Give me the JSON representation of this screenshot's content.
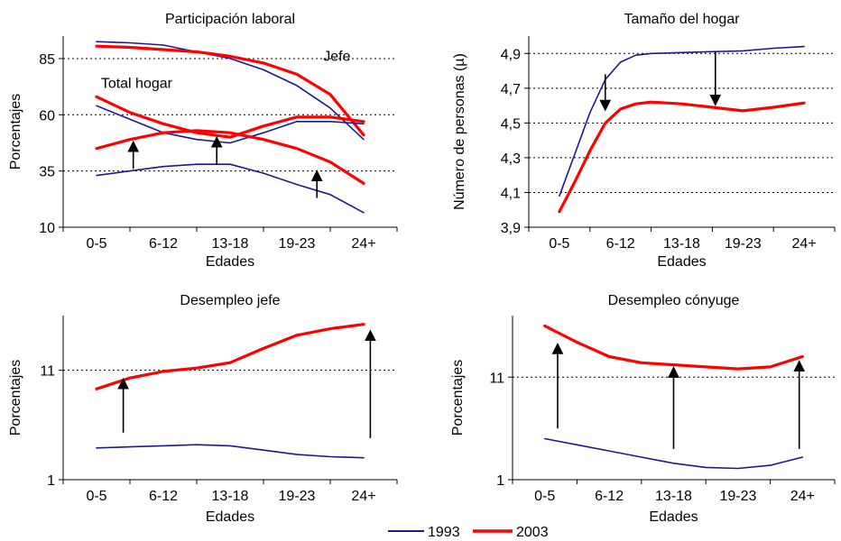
{
  "colors": {
    "s1993": "#1a1a8c",
    "s2003": "#ff0000",
    "grid": "#000000"
  },
  "legend": [
    {
      "name": "1993",
      "color": "#1a1a8c"
    },
    {
      "name": "2003",
      "color": "#ff0000"
    }
  ],
  "chart_data": [
    {
      "type": "line",
      "title": "Participación laboral",
      "xlabel": "Edades",
      "ylabel": "Porcentajes",
      "categories": [
        "0-5",
        "6-12",
        "13-18",
        "19-23",
        "24+"
      ],
      "ylim": [
        10,
        95
      ],
      "yticks": [
        10,
        35,
        60,
        85
      ],
      "gridlines": [
        35,
        60,
        85
      ],
      "annotations": [
        {
          "text": "Total hogar",
          "x": 0.6,
          "y": 72
        },
        {
          "text": "Jefe",
          "x": 3.6,
          "y": 84
        }
      ],
      "arrows": [
        {
          "x": 0.55,
          "from": 36,
          "to": 46,
          "dir": "up"
        },
        {
          "x": 1.8,
          "from": 38,
          "to": 48,
          "dir": "up"
        },
        {
          "x": 3.3,
          "from": 23,
          "to": 33,
          "dir": "up"
        }
      ],
      "series": [
        {
          "name": "1993",
          "x": [
            0,
            0.5,
            1,
            1.5,
            2,
            2.5,
            3,
            3.5,
            4
          ],
          "values": [
            92.5,
            92,
            91,
            88,
            85,
            80,
            73,
            63,
            49
          ]
        },
        {
          "name": "2003",
          "x": [
            0,
            0.5,
            1,
            1.5,
            2,
            2.5,
            3,
            3.5,
            4
          ],
          "values": [
            90.5,
            90,
            89,
            88,
            86,
            83,
            78,
            69,
            51
          ]
        },
        {
          "name": "1993",
          "x": [
            0,
            0.5,
            1,
            1.5,
            2,
            2.5,
            3,
            3.5,
            4
          ],
          "values": [
            64,
            58,
            52,
            49,
            47.5,
            52,
            57,
            57,
            56
          ]
        },
        {
          "name": "2003",
          "x": [
            0,
            0.5,
            1,
            1.5,
            2,
            2.5,
            3,
            3.5,
            4
          ],
          "values": [
            68,
            61,
            56,
            52,
            50,
            55,
            59,
            59,
            57
          ]
        },
        {
          "name": "2003",
          "x": [
            0,
            0.5,
            1,
            1.5,
            2,
            2.5,
            3,
            3.5,
            4
          ],
          "values": [
            45,
            49,
            52,
            53,
            52,
            49,
            45,
            39,
            29.5
          ]
        },
        {
          "name": "1993",
          "x": [
            0,
            0.5,
            1,
            1.5,
            2,
            2.5,
            3,
            3.5,
            4
          ],
          "values": [
            33,
            35,
            37,
            38,
            38,
            34,
            29,
            24.5,
            16.5
          ]
        }
      ]
    },
    {
      "type": "line",
      "title": "Tamaño del hogar",
      "xlabel": "Edades",
      "ylabel": "Número de personas (µ)",
      "categories": [
        "0-5",
        "6-12",
        "13-18",
        "19-23",
        "24+"
      ],
      "ylim": [
        3.9,
        5.0
      ],
      "yticks": [
        3.9,
        4.1,
        4.3,
        4.5,
        4.7,
        4.9
      ],
      "gridlines": [
        4.1,
        4.3,
        4.5,
        4.7,
        4.9
      ],
      "arrows": [
        {
          "x": 0.75,
          "from": 4.78,
          "to": 4.6,
          "dir": "down"
        },
        {
          "x": 2.55,
          "from": 4.91,
          "to": 4.63,
          "dir": "down"
        }
      ],
      "series": [
        {
          "name": "1993",
          "x": [
            0,
            0.25,
            0.5,
            0.75,
            1,
            1.25,
            1.5,
            2,
            2.5,
            3,
            3.5,
            4
          ],
          "values": [
            4.08,
            4.32,
            4.56,
            4.75,
            4.85,
            4.89,
            4.9,
            4.905,
            4.91,
            4.915,
            4.93,
            4.94
          ]
        },
        {
          "name": "2003",
          "x": [
            0,
            0.25,
            0.5,
            0.75,
            1,
            1.25,
            1.5,
            2,
            2.5,
            3,
            3.5,
            4
          ],
          "values": [
            3.99,
            4.16,
            4.34,
            4.5,
            4.58,
            4.61,
            4.62,
            4.61,
            4.59,
            4.57,
            4.59,
            4.615
          ]
        }
      ]
    },
    {
      "type": "line",
      "title": "Desempleo jefe",
      "xlabel": "Edades",
      "ylabel": "Porcentajes",
      "categories": [
        "0-5",
        "6-12",
        "13-18",
        "19-23",
        "24+"
      ],
      "ylim": [
        1,
        16
      ],
      "yticks": [
        1,
        11
      ],
      "gridlines": [
        11
      ],
      "arrows": [
        {
          "x": 0.4,
          "from": 5.3,
          "to": 9.8,
          "dir": "up"
        },
        {
          "x": 4.1,
          "from": 4.8,
          "to": 14.2,
          "dir": "up"
        }
      ],
      "series": [
        {
          "name": "1993",
          "x": [
            0,
            0.5,
            1,
            1.5,
            2,
            2.5,
            3,
            3.5,
            4
          ],
          "values": [
            3.9,
            4.0,
            4.1,
            4.2,
            4.1,
            3.7,
            3.3,
            3.1,
            3.0
          ]
        },
        {
          "name": "2003",
          "x": [
            0,
            0.5,
            1,
            1.5,
            2,
            2.5,
            3,
            3.5,
            4
          ],
          "values": [
            9.3,
            10.3,
            10.9,
            11.2,
            11.7,
            13.0,
            14.2,
            14.8,
            15.2
          ]
        }
      ]
    },
    {
      "type": "line",
      "title": "Desempleo cónyuge",
      "xlabel": "Edades",
      "ylabel": "Porcentajes",
      "categories": [
        "0-5",
        "6-12",
        "13-18",
        "19-23",
        "24+"
      ],
      "ylim": [
        1,
        17
      ],
      "yticks": [
        1,
        11
      ],
      "gridlines": [
        11
      ],
      "arrows": [
        {
          "x": 0.2,
          "from": 6.0,
          "to": 13.8,
          "dir": "up"
        },
        {
          "x": 2.0,
          "from": 4.0,
          "to": 11.5,
          "dir": "up"
        },
        {
          "x": 3.95,
          "from": 4.0,
          "to": 12.1,
          "dir": "up"
        }
      ],
      "series": [
        {
          "name": "1993",
          "x": [
            0,
            0.5,
            1,
            1.5,
            2,
            2.5,
            3,
            3.5,
            4
          ],
          "values": [
            5.0,
            4.4,
            3.8,
            3.2,
            2.6,
            2.2,
            2.1,
            2.4,
            3.2
          ]
        },
        {
          "name": "2003",
          "x": [
            0,
            0.5,
            1,
            1.5,
            2,
            2.5,
            3,
            3.5,
            4
          ],
          "values": [
            16.0,
            14.4,
            13.0,
            12.4,
            12.2,
            12.0,
            11.8,
            12.0,
            13.0
          ]
        }
      ]
    }
  ]
}
